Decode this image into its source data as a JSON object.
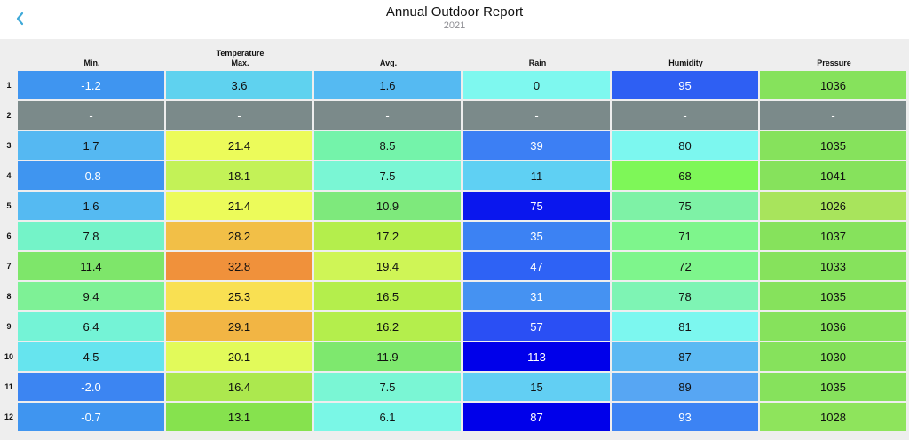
{
  "nav": {
    "back_icon": "chevron-left-icon",
    "title": "Annual Outdoor Report",
    "subtitle": "2021"
  },
  "colors": {
    "accent": "#3fa9d8",
    "missing": "#7b8a8a"
  },
  "table": {
    "headers": [
      {
        "group": "",
        "label": "Min."
      },
      {
        "group": "Temperature",
        "label": "Max."
      },
      {
        "group": "",
        "label": "Avg."
      },
      {
        "group": "",
        "label": "Rain"
      },
      {
        "group": "",
        "label": "Humidity"
      },
      {
        "group": "",
        "label": "Pressure"
      }
    ],
    "rows": [
      {
        "label": "1",
        "cells": [
          {
            "v": "-1.2",
            "c": "#3f95f0",
            "light": true
          },
          {
            "v": "3.6",
            "c": "#5fd2ef"
          },
          {
            "v": "1.6",
            "c": "#55baf2"
          },
          {
            "v": "0",
            "c": "#7ef8ef"
          },
          {
            "v": "95",
            "c": "#2e5ff3",
            "light": true
          },
          {
            "v": "1036",
            "c": "#86e25c"
          }
        ]
      },
      {
        "label": "2",
        "cells": [
          {
            "v": "-",
            "c": "#7b8a8a",
            "light": true
          },
          {
            "v": "-",
            "c": "#7b8a8a",
            "light": true
          },
          {
            "v": "-",
            "c": "#7b8a8a",
            "light": true
          },
          {
            "v": "-",
            "c": "#7b8a8a",
            "light": true
          },
          {
            "v": "-",
            "c": "#7b8a8a",
            "light": true
          },
          {
            "v": "-",
            "c": "#7b8a8a",
            "light": true
          }
        ]
      },
      {
        "label": "3",
        "cells": [
          {
            "v": "1.7",
            "c": "#55b8f2"
          },
          {
            "v": "21.4",
            "c": "#ecfb5a"
          },
          {
            "v": "8.5",
            "c": "#74f3aa"
          },
          {
            "v": "39",
            "c": "#3c7ff4",
            "light": true
          },
          {
            "v": "80",
            "c": "#7cf7ef"
          },
          {
            "v": "1035",
            "c": "#86e25c"
          }
        ]
      },
      {
        "label": "4",
        "cells": [
          {
            "v": "-0.8",
            "c": "#3f95f0",
            "light": true
          },
          {
            "v": "18.1",
            "c": "#c3f257"
          },
          {
            "v": "7.5",
            "c": "#7af6d4"
          },
          {
            "v": "11",
            "c": "#5fd0f3"
          },
          {
            "v": "68",
            "c": "#7ef758"
          },
          {
            "v": "1041",
            "c": "#86e25c"
          }
        ]
      },
      {
        "label": "5",
        "cells": [
          {
            "v": "1.6",
            "c": "#55baf2"
          },
          {
            "v": "21.4",
            "c": "#ecfb5a"
          },
          {
            "v": "10.9",
            "c": "#7ee97c"
          },
          {
            "v": "75",
            "c": "#0a17ee",
            "light": true
          },
          {
            "v": "75",
            "c": "#7ef2a6"
          },
          {
            "v": "1026",
            "c": "#a8e45c"
          }
        ]
      },
      {
        "label": "6",
        "cells": [
          {
            "v": "7.8",
            "c": "#74f3c8"
          },
          {
            "v": "28.2",
            "c": "#f2bf47"
          },
          {
            "v": "17.2",
            "c": "#b4ee4c"
          },
          {
            "v": "35",
            "c": "#3c82f3",
            "light": true
          },
          {
            "v": "71",
            "c": "#7ef58c"
          },
          {
            "v": "1037",
            "c": "#86e25c"
          }
        ]
      },
      {
        "label": "7",
        "cells": [
          {
            "v": "11.4",
            "c": "#7ee66a"
          },
          {
            "v": "32.8",
            "c": "#f0913b"
          },
          {
            "v": "19.4",
            "c": "#cff556"
          },
          {
            "v": "47",
            "c": "#2e62f5",
            "light": true
          },
          {
            "v": "72",
            "c": "#7ef58c"
          },
          {
            "v": "1033",
            "c": "#86e25c"
          }
        ]
      },
      {
        "label": "8",
        "cells": [
          {
            "v": "9.4",
            "c": "#7ef196"
          },
          {
            "v": "25.3",
            "c": "#f9e052"
          },
          {
            "v": "16.5",
            "c": "#b4ee4c"
          },
          {
            "v": "31",
            "c": "#4592f2",
            "light": true
          },
          {
            "v": "78",
            "c": "#7ef4b4"
          },
          {
            "v": "1035",
            "c": "#86e25c"
          }
        ]
      },
      {
        "label": "9",
        "cells": [
          {
            "v": "6.4",
            "c": "#74f3d6"
          },
          {
            "v": "29.1",
            "c": "#f2b544"
          },
          {
            "v": "16.2",
            "c": "#b4ee4c"
          },
          {
            "v": "57",
            "c": "#2a4ff4",
            "light": true
          },
          {
            "v": "81",
            "c": "#7cf7ef"
          },
          {
            "v": "1036",
            "c": "#86e25c"
          }
        ]
      },
      {
        "label": "10",
        "cells": [
          {
            "v": "4.5",
            "c": "#66e4ee"
          },
          {
            "v": "20.1",
            "c": "#e2fa5a"
          },
          {
            "v": "11.9",
            "c": "#7ee86e"
          },
          {
            "v": "113",
            "c": "#0000ea",
            "light": true
          },
          {
            "v": "87",
            "c": "#5bb9f3"
          },
          {
            "v": "1030",
            "c": "#86e25c"
          }
        ]
      },
      {
        "label": "11",
        "cells": [
          {
            "v": "-2.0",
            "c": "#3c85f2",
            "light": true
          },
          {
            "v": "16.4",
            "c": "#ace84e"
          },
          {
            "v": "7.5",
            "c": "#7af6d4"
          },
          {
            "v": "15",
            "c": "#62cff3"
          },
          {
            "v": "89",
            "c": "#57a6f3"
          },
          {
            "v": "1035",
            "c": "#86e25c"
          }
        ]
      },
      {
        "label": "12",
        "cells": [
          {
            "v": "-0.7",
            "c": "#3f95f0",
            "light": true
          },
          {
            "v": "13.1",
            "c": "#86e24e"
          },
          {
            "v": "6.1",
            "c": "#7af7e6"
          },
          {
            "v": "87",
            "c": "#0000ea",
            "light": true
          },
          {
            "v": "93",
            "c": "#3c83f4",
            "light": true
          },
          {
            "v": "1028",
            "c": "#8ee45c"
          }
        ]
      }
    ]
  }
}
